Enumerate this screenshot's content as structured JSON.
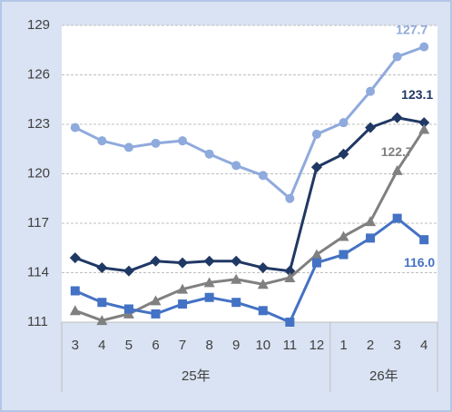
{
  "chart_data": {
    "type": "line",
    "categories": [
      "3",
      "4",
      "5",
      "6",
      "7",
      "8",
      "9",
      "10",
      "11",
      "12",
      "1",
      "2",
      "3",
      "4"
    ],
    "x_groups": [
      {
        "name": "25年",
        "count": 10
      },
      {
        "name": "26年",
        "count": 4
      }
    ],
    "ylim": [
      111,
      129
    ],
    "yticks": [
      111,
      114,
      117,
      120,
      123,
      126,
      129
    ],
    "grid": true,
    "series": [
      {
        "color": "#8faadc",
        "marker": "circle",
        "values": [
          122.8,
          122.0,
          121.6,
          121.85,
          122.0,
          121.2,
          120.5,
          119.9,
          118.5,
          122.4,
          123.1,
          125.0,
          127.1,
          127.7
        ],
        "value_labels": [
          null,
          null,
          null,
          null,
          null,
          null,
          null,
          null,
          null,
          null,
          null,
          null,
          null,
          "127.7"
        ]
      },
      {
        "color": "#203864",
        "marker": "diamond",
        "values": [
          114.9,
          114.3,
          114.1,
          114.7,
          114.6,
          114.7,
          114.7,
          114.3,
          114.1,
          120.4,
          121.2,
          122.8,
          123.4,
          123.1
        ],
        "value_labels": [
          null,
          null,
          null,
          null,
          null,
          null,
          null,
          null,
          null,
          null,
          null,
          null,
          null,
          "123.1"
        ]
      },
      {
        "color": "#808080",
        "marker": "triangle",
        "values": [
          111.7,
          111.1,
          111.5,
          112.3,
          113.0,
          113.4,
          113.6,
          113.3,
          113.7,
          115.1,
          116.2,
          117.1,
          120.2,
          122.7
        ],
        "value_labels": [
          null,
          null,
          null,
          null,
          null,
          null,
          null,
          null,
          null,
          null,
          null,
          null,
          null,
          "122.7"
        ]
      },
      {
        "color": "#4472c4",
        "marker": "square",
        "values": [
          112.9,
          112.2,
          111.8,
          111.5,
          112.1,
          112.5,
          112.2,
          111.7,
          111.0,
          114.6,
          115.1,
          116.1,
          117.3,
          116.0
        ],
        "value_labels": [
          null,
          null,
          null,
          null,
          null,
          null,
          null,
          null,
          null,
          null,
          null,
          null,
          null,
          "116.0"
        ]
      }
    ]
  }
}
